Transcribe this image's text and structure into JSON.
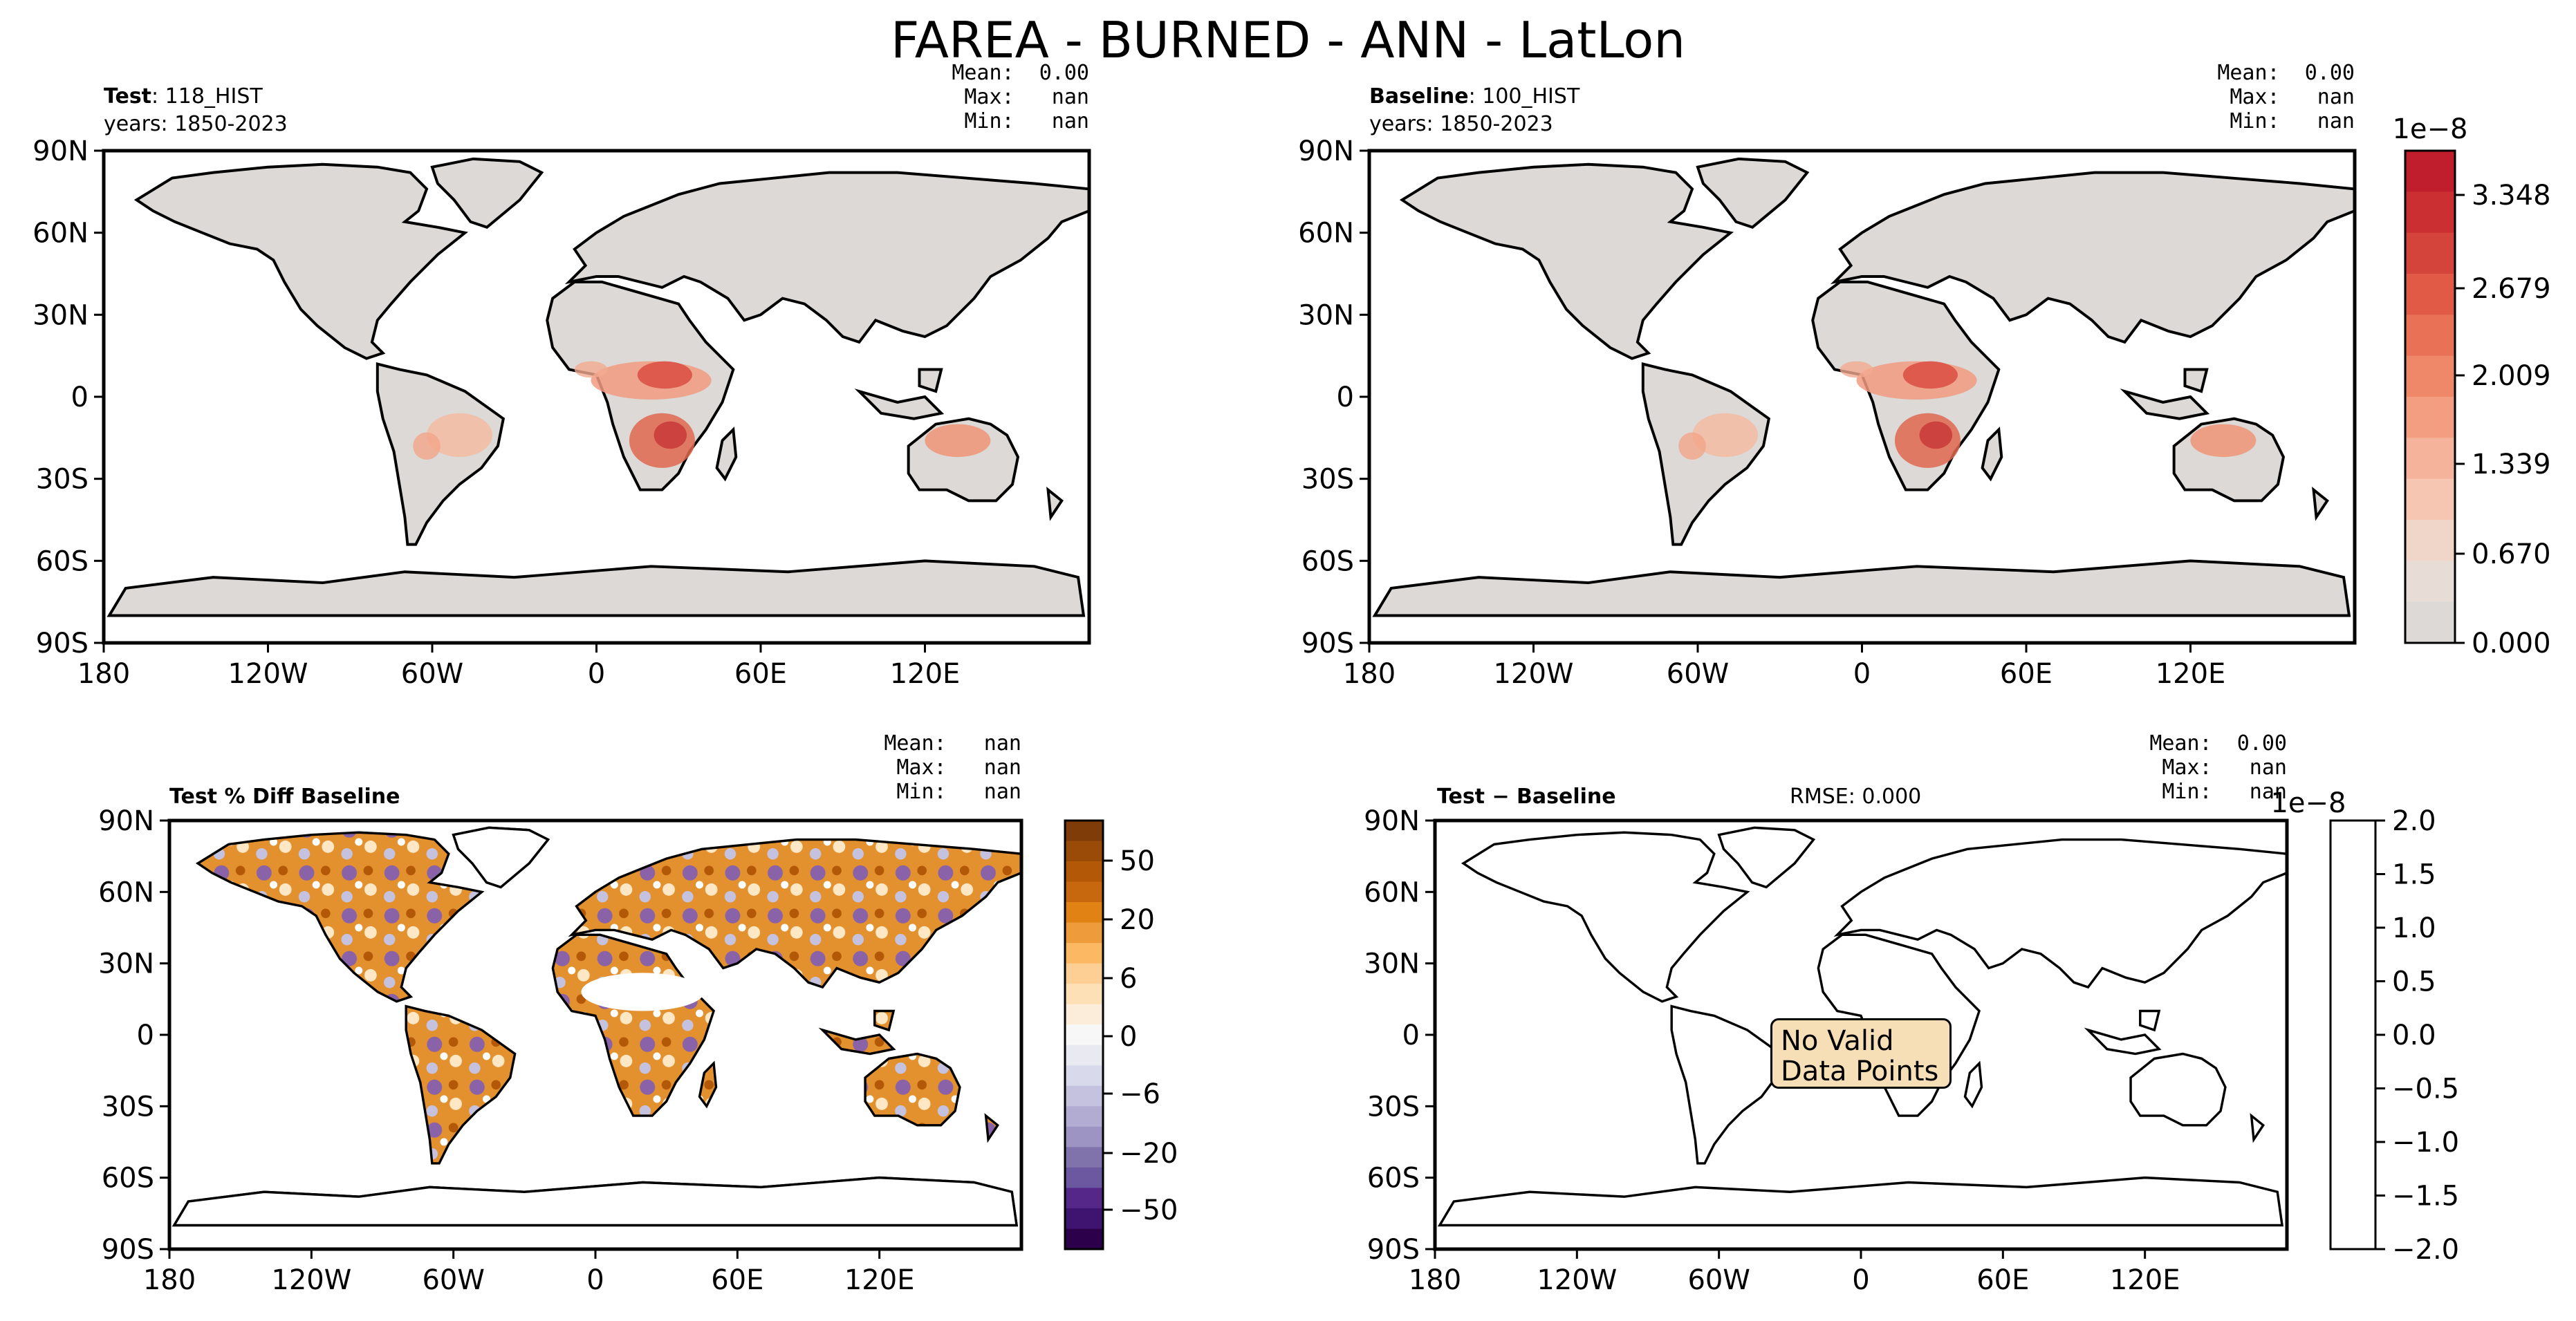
{
  "figure": {
    "title": "FAREA - BURNED - ANN - LatLon"
  },
  "panels": {
    "test": {
      "label_bold": "Test",
      "label_rest": ": 118_HIST",
      "years": "years: 1850-2023",
      "stats": "Mean:  0.00\nMax:   nan\nMin:   nan"
    },
    "baseline": {
      "label_bold": "Baseline",
      "label_rest": ": 100_HIST",
      "years": "years: 1850-2023",
      "stats": "Mean:  0.00\nMax:   nan\nMin:   nan"
    },
    "pctdiff": {
      "label_bold": "Test % Diff Baseline",
      "stats": "Mean:   nan\nMax:   nan\nMin:   nan"
    },
    "diff": {
      "label_bold": "Test − Baseline",
      "rmse": "RMSE: 0.000",
      "stats": "Mean:  0.00\nMax:   nan\nMin:   nan",
      "message": "No Valid Data Points"
    }
  },
  "colorbars": {
    "main": {
      "exponent": "1e−8",
      "ticks": [
        "3.348",
        "2.679",
        "2.009",
        "1.339",
        "0.670",
        "0.000"
      ],
      "colors": [
        "#c01d2d",
        "#cb2f32",
        "#d5443a",
        "#e05a46",
        "#e87156",
        "#ef8869",
        "#f39e81",
        "#f6b39b",
        "#f6c6b3",
        "#f0d5c9",
        "#e7dcd6",
        "#dcd9d6"
      ]
    },
    "pct": {
      "ticks": [
        "50",
        "20",
        "6",
        "0",
        "−6",
        "−20",
        "−50"
      ],
      "colors": [
        "#7f3b08",
        "#9a4b08",
        "#b35806",
        "#c8680e",
        "#e08214",
        "#ee9c3b",
        "#fdb863",
        "#fdcf94",
        "#fee0b6",
        "#fbedd9",
        "#f7f7f7",
        "#e9e9f1",
        "#d8daeb",
        "#c4c2de",
        "#b2abd2",
        "#9e94c4",
        "#8073ac",
        "#6b58a0",
        "#542788",
        "#3f1470",
        "#2d004b"
      ]
    },
    "diff": {
      "exponent": "1e−8",
      "ticks": [
        "2.0",
        "1.5",
        "1.0",
        "0.5",
        "0.0",
        "−0.5",
        "−1.0",
        "−1.5",
        "−2.0"
      ]
    }
  },
  "axes": {
    "lon_ticks": [
      "180",
      "120W",
      "60W",
      "0",
      "60E",
      "120E"
    ],
    "lat_ticks": [
      "90N",
      "60N",
      "30N",
      "0",
      "30S",
      "60S",
      "90S"
    ]
  },
  "chart_data": [
    {
      "type": "heatmap",
      "title": "Test: 118_HIST",
      "variable": "FAREA_BURNED",
      "season": "ANN",
      "xlim": [
        -180,
        180
      ],
      "ylim": [
        -90,
        90
      ],
      "colorbar_range": [
        0.0,
        3.7e-08
      ],
      "stats": {
        "mean": "0.00",
        "max": "nan",
        "min": "nan"
      },
      "hotspots": [
        {
          "region": "Sahel / Central Africa",
          "lon": 20,
          "lat": 8,
          "level": "medium"
        },
        {
          "region": "Southern Africa",
          "lon": 25,
          "lat": -15,
          "level": "high"
        },
        {
          "region": "Northern Australia",
          "lon": 133,
          "lat": -15,
          "level": "medium"
        },
        {
          "region": "South America",
          "lon": -50,
          "lat": -15,
          "level": "low"
        }
      ]
    },
    {
      "type": "heatmap",
      "title": "Baseline: 100_HIST",
      "variable": "FAREA_BURNED",
      "season": "ANN",
      "xlim": [
        -180,
        180
      ],
      "ylim": [
        -90,
        90
      ],
      "colorbar_range": [
        0.0,
        3.7e-08
      ],
      "stats": {
        "mean": "0.00",
        "max": "nan",
        "min": "nan"
      }
    },
    {
      "type": "heatmap",
      "title": "Test % Diff Baseline",
      "xlim": [
        -180,
        180
      ],
      "ylim": [
        -90,
        90
      ],
      "colorbar_ticks": [
        -50,
        -20,
        -6,
        0,
        6,
        20,
        50
      ],
      "stats": {
        "mean": "nan",
        "max": "nan",
        "min": "nan"
      }
    },
    {
      "type": "heatmap",
      "title": "Test − Baseline",
      "xlim": [
        -180,
        180
      ],
      "ylim": [
        -90,
        90
      ],
      "colorbar_range": [
        -2e-08,
        2e-08
      ],
      "rmse": 0.0,
      "stats": {
        "mean": "0.00",
        "max": "nan",
        "min": "nan"
      }
    }
  ]
}
